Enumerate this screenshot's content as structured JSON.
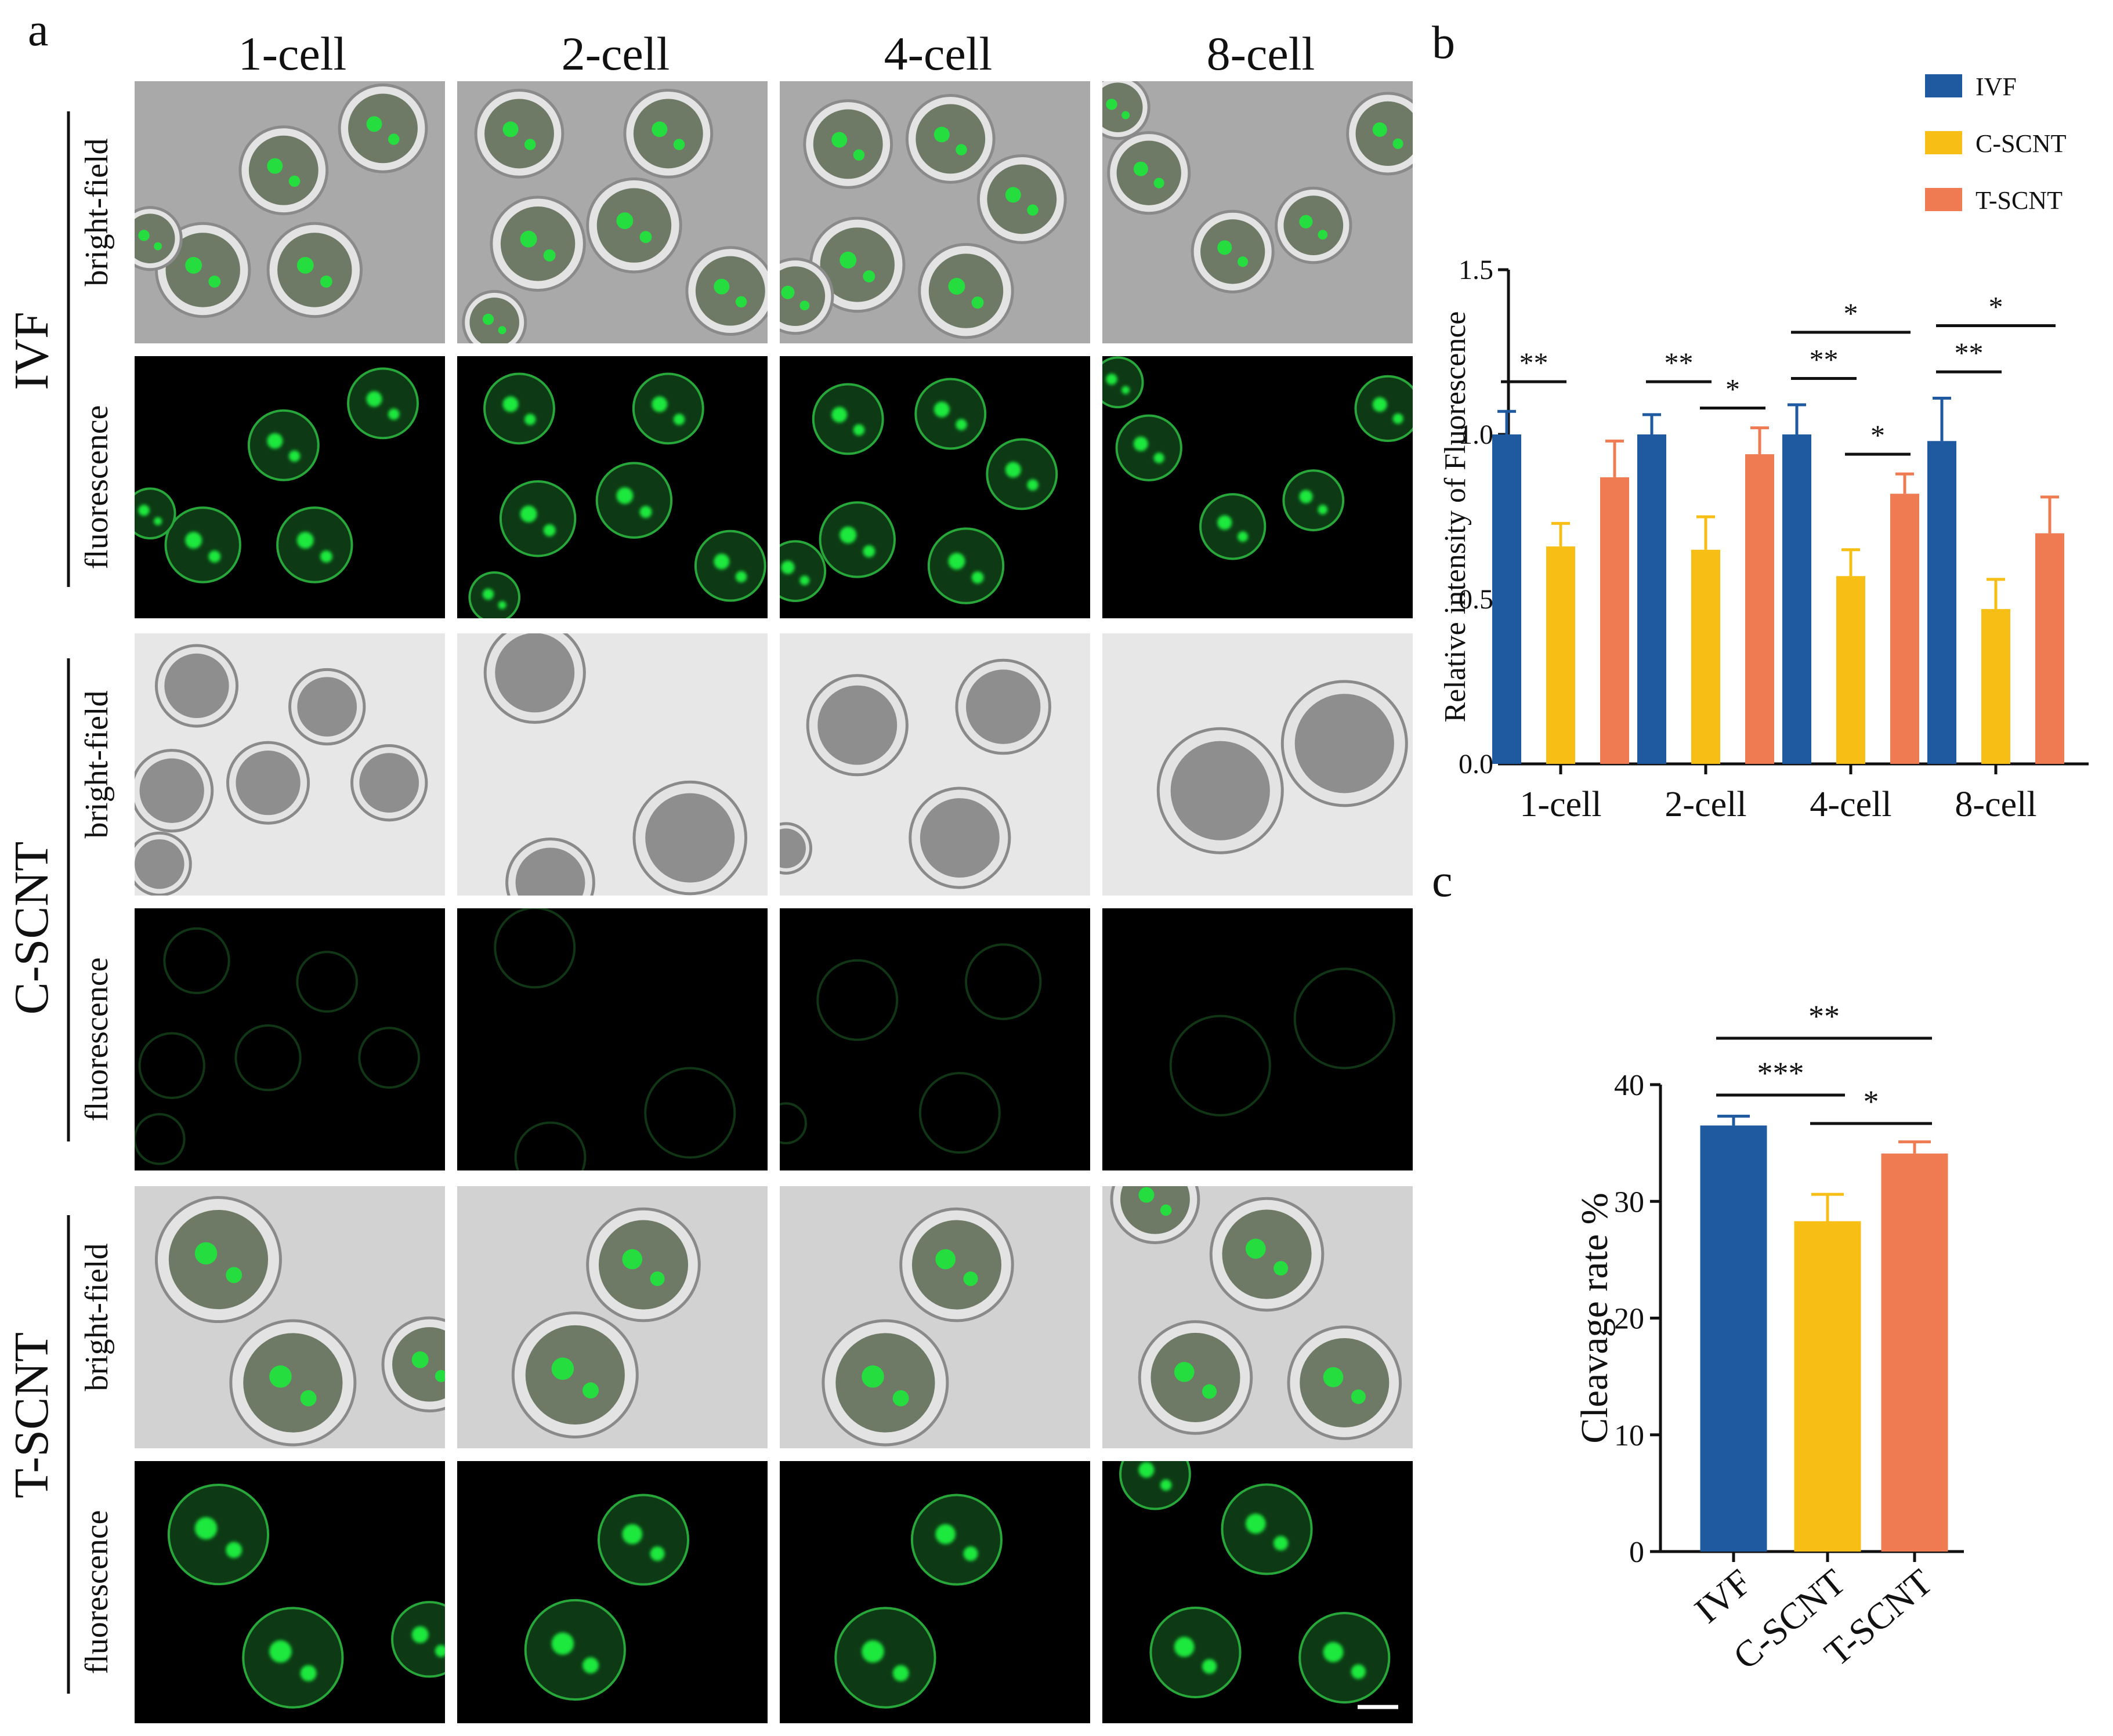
{
  "colors": {
    "ivf": "#1f5aa0",
    "cscnt": "#f7bf16",
    "tscnt": "#ef7b52",
    "bf_ivf": "#a9a9a9",
    "bf_cscnt": "#e7e7e7",
    "bf_tscnt": "#d2d2d2",
    "fluor_bg": "#000000",
    "fluor_green": "#1ee83c"
  },
  "panel_a": {
    "label": "a",
    "stages": [
      "1-cell",
      "2-cell",
      "4-cell",
      "8-cell"
    ],
    "groups": [
      "IVF",
      "C-SCNT",
      "T-SCNT"
    ],
    "row_labels": [
      "bright-field",
      "fluorescence"
    ]
  },
  "chart_data": [
    {
      "panel_label": "b",
      "type": "bar",
      "ylabel": "Relative intensity of Fluorescence",
      "ylim": [
        0,
        1.5
      ],
      "yticks": [
        "0.0",
        "0.5",
        "1.0",
        "1.5"
      ],
      "categories": [
        "1-cell",
        "2-cell",
        "4-cell",
        "8-cell"
      ],
      "legend": [
        "IVF",
        "C-SCNT",
        "T-SCNT"
      ],
      "legend_position": "top-right",
      "series": [
        {
          "name": "IVF",
          "values": [
            1.0,
            1.0,
            1.0,
            0.98
          ],
          "errors": [
            0.07,
            0.06,
            0.09,
            0.13
          ]
        },
        {
          "name": "C-SCNT",
          "values": [
            0.66,
            0.65,
            0.57,
            0.47
          ],
          "errors": [
            0.07,
            0.1,
            0.08,
            0.09
          ]
        },
        {
          "name": "T-SCNT",
          "values": [
            0.87,
            0.94,
            0.82,
            0.7
          ],
          "errors": [
            0.11,
            0.08,
            0.06,
            0.11
          ]
        }
      ],
      "significance": [
        {
          "category": "1-cell",
          "pair": [
            "IVF",
            "C-SCNT"
          ],
          "label": "**"
        },
        {
          "category": "2-cell",
          "pair": [
            "IVF",
            "C-SCNT"
          ],
          "label": "**"
        },
        {
          "category": "2-cell",
          "pair": [
            "C-SCNT",
            "T-SCNT"
          ],
          "label": "*"
        },
        {
          "category": "4-cell",
          "pair": [
            "IVF",
            "T-SCNT"
          ],
          "label": "*"
        },
        {
          "category": "4-cell",
          "pair": [
            "IVF",
            "C-SCNT"
          ],
          "label": "**"
        },
        {
          "category": "4-cell",
          "pair": [
            "C-SCNT",
            "T-SCNT"
          ],
          "label": "*"
        },
        {
          "category": "8-cell",
          "pair": [
            "IVF",
            "T-SCNT"
          ],
          "label": "*"
        },
        {
          "category": "8-cell",
          "pair": [
            "IVF",
            "C-SCNT"
          ],
          "label": "**"
        }
      ]
    },
    {
      "panel_label": "c",
      "type": "bar",
      "ylabel": "Cleavage rate %",
      "ylim": [
        0,
        40
      ],
      "yticks": [
        "0",
        "10",
        "20",
        "30",
        "40"
      ],
      "categories": [
        "IVF",
        "C-SCNT",
        "T-SCNT"
      ],
      "values": [
        36.5,
        28.3,
        34.1
      ],
      "errors": [
        0.8,
        2.3,
        1.0
      ],
      "significance": [
        {
          "pair": [
            "IVF",
            "T-SCNT"
          ],
          "label": "**"
        },
        {
          "pair": [
            "IVF",
            "C-SCNT"
          ],
          "label": "***"
        },
        {
          "pair": [
            "C-SCNT",
            "T-SCNT"
          ],
          "label": "*"
        }
      ]
    }
  ]
}
